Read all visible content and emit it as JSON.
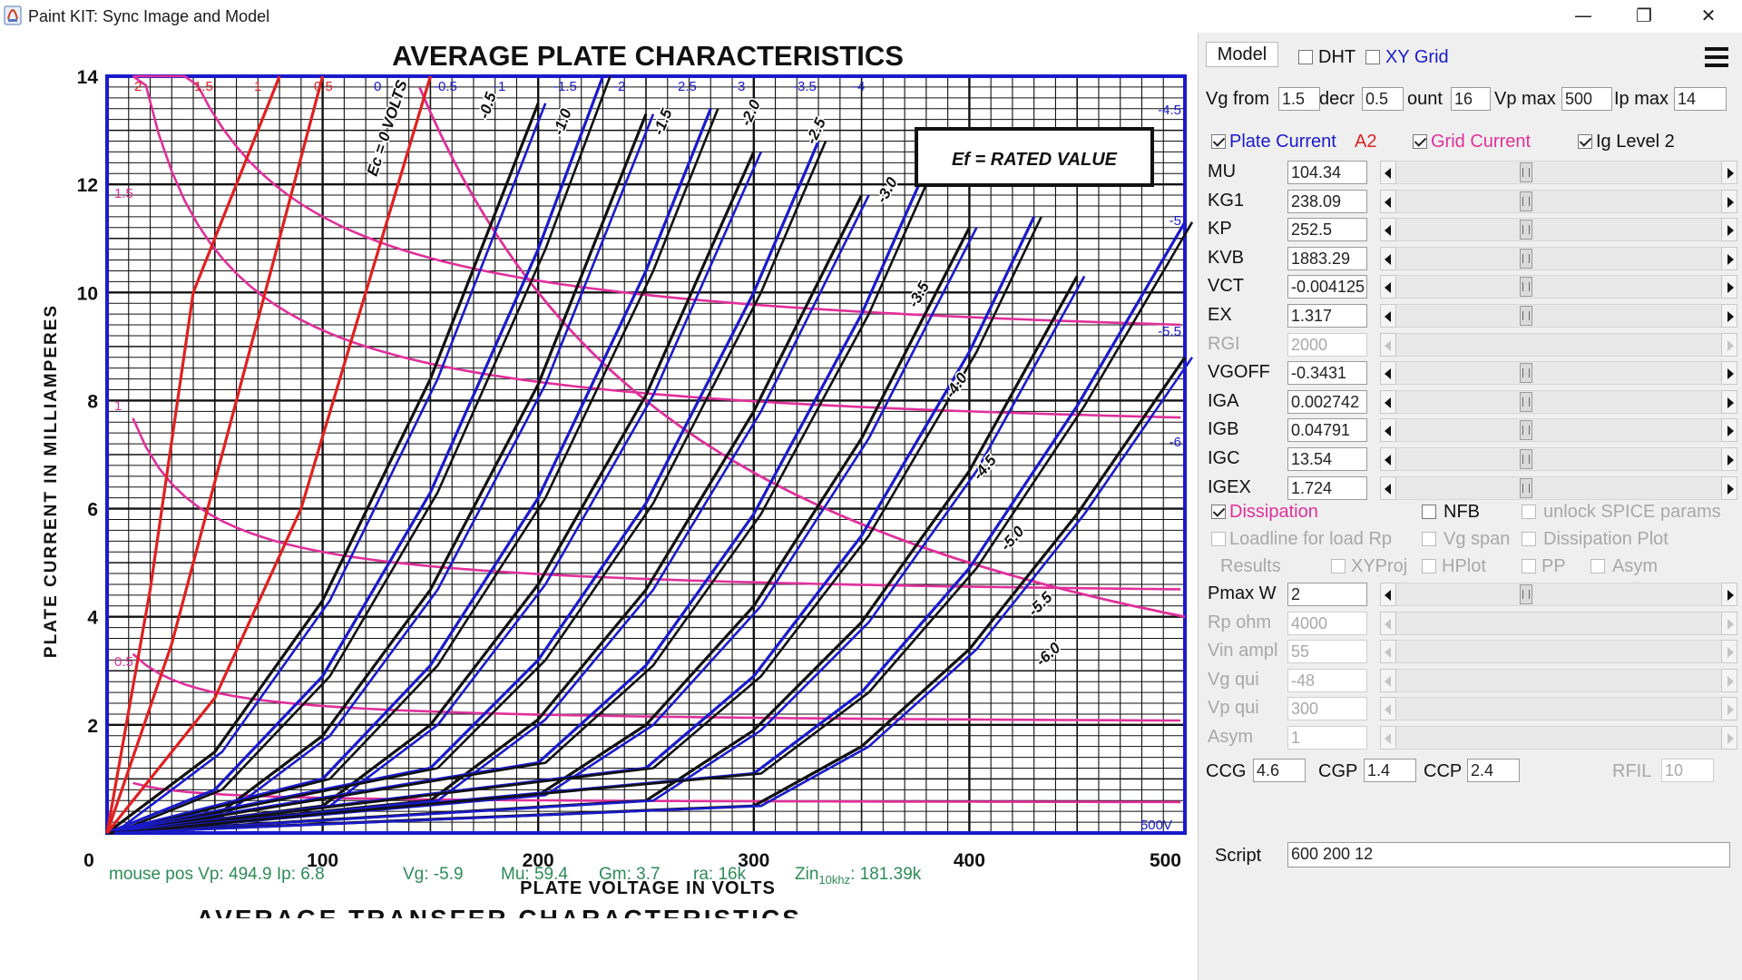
{
  "window": {
    "title": "Paint KIT: Sync Image and Model",
    "minimize_glyph": "—",
    "maximize_glyph": "❐",
    "close_glyph": "✕"
  },
  "datasheet": {
    "title": "AVERAGE PLATE CHARACTERISTICS",
    "xlabel": "PLATE VOLTAGE IN VOLTS",
    "ylabel": "PLATE CURRENT IN MILLIAMPERES",
    "note": "Ef = RATED VALUE",
    "bottom_title_fragment": "AVERAGE TRANSFER CHARACTERISTICS",
    "x_ticks": [
      "0",
      "100",
      "200",
      "300",
      "400",
      "500"
    ],
    "y_ticks": [
      "2",
      "4",
      "6",
      "8",
      "10",
      "12",
      "14"
    ],
    "curve_labels": [
      "Ec = 0 VOLTS",
      "-0.5",
      "-1.0",
      "-1.5",
      "-2.0",
      "-2.5",
      "-3.0",
      "-3.5",
      "-4.0",
      "-4.5",
      "-5.0",
      "-5.5",
      "-6.0"
    ],
    "model_top_labels": [
      "2",
      "1.5",
      "1",
      "0.5",
      "0",
      "-0.5",
      "-1",
      "-1.5",
      "-2",
      "-2.5",
      "-3",
      "-3.5",
      "-4"
    ],
    "model_right_labels": [
      "-4.5",
      "-5",
      "-5.5",
      "-6"
    ],
    "grid_labels": [
      "1.5",
      "1",
      "0.5"
    ],
    "corner_label": "500V"
  },
  "chart_data": {
    "type": "line",
    "title": "AVERAGE PLATE CHARACTERISTICS",
    "xlabel": "PLATE VOLTAGE IN VOLTS",
    "ylabel": "PLATE CURRENT IN MILLIAMPERES",
    "xlim": [
      0,
      500
    ],
    "ylim": [
      0,
      14
    ],
    "grid": true,
    "series": [
      {
        "name": "0",
        "x": [
          0,
          50,
          100,
          150,
          200
        ],
        "y": [
          0,
          1.5,
          4.3,
          8.4,
          13.5
        ]
      },
      {
        "name": "-0.5",
        "x": [
          0,
          50,
          100,
          150,
          200,
          230
        ],
        "y": [
          0,
          0.8,
          2.9,
          6.3,
          10.8,
          14
        ]
      },
      {
        "name": "-1.0",
        "x": [
          0,
          50,
          100,
          150,
          200,
          250
        ],
        "y": [
          0,
          0.3,
          1.8,
          4.5,
          8.3,
          13.3
        ]
      },
      {
        "name": "-1.5",
        "x": [
          0,
          100,
          150,
          200,
          250,
          280
        ],
        "y": [
          0,
          1.0,
          3.1,
          6.2,
          10.4,
          13.4
        ]
      },
      {
        "name": "-2.0",
        "x": [
          0,
          100,
          150,
          200,
          250,
          300
        ],
        "y": [
          0,
          0.5,
          2.0,
          4.6,
          8.1,
          12.6
        ]
      },
      {
        "name": "-2.5",
        "x": [
          0,
          150,
          200,
          250,
          300,
          330
        ],
        "y": [
          0,
          1.2,
          3.2,
          6.1,
          10.0,
          12.8
        ]
      },
      {
        "name": "-3.0",
        "x": [
          0,
          150,
          200,
          250,
          300,
          350
        ],
        "y": [
          0,
          0.6,
          2.1,
          4.5,
          7.8,
          11.8
        ]
      },
      {
        "name": "-3.5",
        "x": [
          0,
          200,
          250,
          300,
          350,
          380
        ],
        "y": [
          0,
          1.3,
          3.1,
          5.9,
          9.6,
          12.3
        ]
      },
      {
        "name": "-4.0",
        "x": [
          0,
          200,
          250,
          300,
          350,
          400
        ],
        "y": [
          0,
          0.7,
          2.0,
          4.2,
          7.3,
          11.2
        ]
      },
      {
        "name": "-4.5",
        "x": [
          0,
          250,
          300,
          350,
          400,
          430
        ],
        "y": [
          0,
          1.2,
          2.9,
          5.5,
          8.9,
          11.4
        ]
      },
      {
        "name": "-5.0",
        "x": [
          0,
          250,
          300,
          350,
          400,
          450
        ],
        "y": [
          0,
          0.6,
          1.9,
          3.9,
          6.7,
          10.3
        ]
      },
      {
        "name": "-5.5",
        "x": [
          0,
          300,
          350,
          400,
          450,
          500
        ],
        "y": [
          0,
          1.1,
          2.6,
          4.9,
          7.9,
          11.3
        ]
      },
      {
        "name": "-6.0",
        "x": [
          0,
          300,
          350,
          400,
          450,
          500
        ],
        "y": [
          0,
          0.5,
          1.6,
          3.4,
          5.9,
          8.8
        ]
      },
      {
        "name": "1.5",
        "x": [
          0,
          20,
          40,
          80
        ],
        "y": [
          0,
          4.5,
          10,
          14
        ]
      },
      {
        "name": "1",
        "x": [
          0,
          30,
          60,
          100
        ],
        "y": [
          0,
          3.5,
          8,
          14
        ]
      },
      {
        "name": "0.5",
        "x": [
          0,
          50,
          90,
          150
        ],
        "y": [
          0,
          2.5,
          6,
          14
        ]
      }
    ]
  },
  "status": {
    "mouse": "mouse pos Vp: 494.9  Ip: 6.8",
    "vg": "Vg: -5.9",
    "mu": "Mu: 59.4",
    "gm": "Gm: 3.7",
    "ra": "ra: 16k",
    "zin_prefix": "Zin",
    "zin_sub": "10khz",
    "zin_value": ": 181.39k"
  },
  "panel": {
    "model_button": "Model",
    "dht": {
      "label": "DHT",
      "checked": false
    },
    "xy_grid": {
      "label": "XY Grid",
      "checked": false
    },
    "vg_from": {
      "label": "Vg from",
      "value": "1.5"
    },
    "decr": {
      "label": "decr",
      "value": "0.5"
    },
    "count": {
      "label": "ount",
      "value": "16"
    },
    "vp_max": {
      "label": "Vp max",
      "value": "500"
    },
    "ip_max": {
      "label": "Ip max",
      "value": "14"
    },
    "plate_current": {
      "label": "Plate Current",
      "checked": true
    },
    "a2": "A2",
    "grid_current": {
      "label": "Grid Current",
      "checked": true
    },
    "ig_level": {
      "label": "Ig Level 2",
      "checked": true
    },
    "params": [
      {
        "name": "MU",
        "value": "104.34",
        "enabled": true
      },
      {
        "name": "KG1",
        "value": "238.09",
        "enabled": true
      },
      {
        "name": "KP",
        "value": "252.5",
        "enabled": true
      },
      {
        "name": "KVB",
        "value": "1883.29",
        "enabled": true
      },
      {
        "name": "VCT",
        "value": "-0.004125",
        "enabled": true
      },
      {
        "name": "EX",
        "value": "1.317",
        "enabled": true
      },
      {
        "name": "RGI",
        "value": "2000",
        "enabled": false
      },
      {
        "name": "VGOFF",
        "value": "-0.3431",
        "enabled": true
      },
      {
        "name": "IGA",
        "value": "0.002742",
        "enabled": true
      },
      {
        "name": "IGB",
        "value": "0.04791",
        "enabled": true
      },
      {
        "name": "IGC",
        "value": "13.54",
        "enabled": true
      },
      {
        "name": "IGEX",
        "value": "1.724",
        "enabled": true
      }
    ],
    "dissipation": {
      "label": "Dissipation",
      "checked": true
    },
    "nfb": {
      "label": "NFB",
      "checked": false
    },
    "unlock_spice": {
      "label": "unlock SPICE params",
      "checked": false
    },
    "loadline": {
      "label": "Loadline for load Rp",
      "checked": false
    },
    "vg_span": {
      "label": "Vg span",
      "checked": false
    },
    "dissipation_plot": {
      "label": "Dissipation Plot",
      "checked": false
    },
    "results_label": "Results",
    "xyproj": {
      "label": "XYProj",
      "checked": false
    },
    "hplot": {
      "label": "HPlot",
      "checked": false
    },
    "pp": {
      "label": "PP",
      "checked": false
    },
    "asym_cb": {
      "label": "Asym",
      "checked": false
    },
    "params2": [
      {
        "name": "Pmax W",
        "value": "2",
        "enabled": true
      },
      {
        "name": "Rp ohm",
        "value": "4000",
        "enabled": false
      },
      {
        "name": "Vin ampl",
        "value": "55",
        "enabled": false
      },
      {
        "name": "Vg qui",
        "value": "-48",
        "enabled": false
      },
      {
        "name": "Vp qui",
        "value": "300",
        "enabled": false
      },
      {
        "name": "Asym",
        "value": "1",
        "enabled": false
      }
    ],
    "ccg": {
      "label": "CCG",
      "value": "4.6"
    },
    "cgp": {
      "label": "CGP",
      "value": "1.4"
    },
    "ccp": {
      "label": "CCP",
      "value": "2.4"
    },
    "rfil": {
      "label": "RFIL",
      "value": "10"
    },
    "script": {
      "label": "Script",
      "value": "600 200 12"
    }
  },
  "colors": {
    "model_curve": "#1a1acc",
    "datasheet_curve": "#111111",
    "grid_curve": "#e02020",
    "dissipation_curve": "#e0309a",
    "plate_label": "#1a1acc",
    "a2_label": "#e02020",
    "grid_label": "#e0309a",
    "status_text": "#2e8b57"
  }
}
